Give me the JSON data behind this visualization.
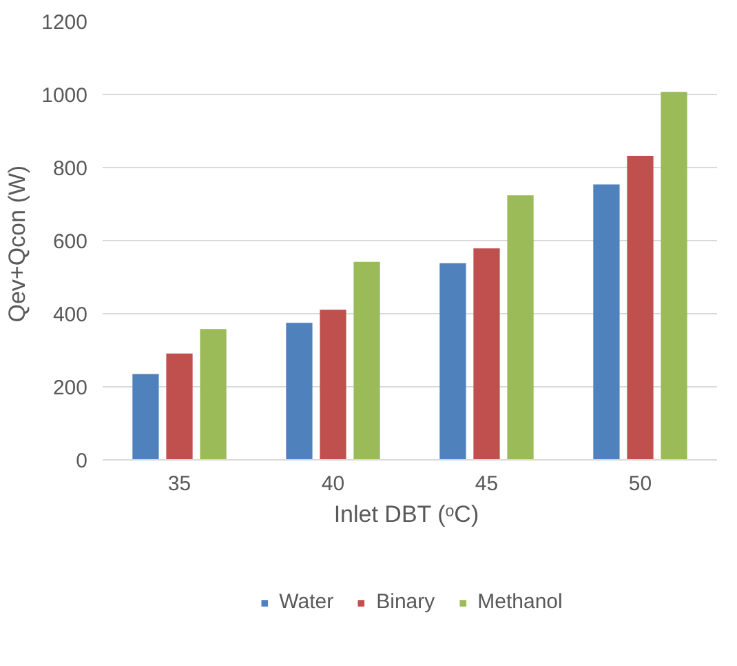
{
  "chart_data": {
    "type": "bar",
    "xlabel": "Inlet DBT  (ᵒC)",
    "ylabel": "Qev+Qcon  (W)",
    "categories": [
      "35",
      "40",
      "45",
      "50"
    ],
    "series": [
      {
        "name": "Water",
        "color": "#4f81bd",
        "values": [
          235,
          375,
          538,
          754
        ]
      },
      {
        "name": "Binary",
        "color": "#c0504d",
        "values": [
          291,
          411,
          579,
          832
        ]
      },
      {
        "name": "Methanol",
        "color": "#9bbb59",
        "values": [
          358,
          542,
          724,
          1007
        ]
      }
    ],
    "ylim": [
      0,
      1200
    ],
    "yticks": [
      0,
      200,
      400,
      600,
      800,
      1000,
      1200
    ],
    "grid": "y",
    "legend": "bottom"
  }
}
